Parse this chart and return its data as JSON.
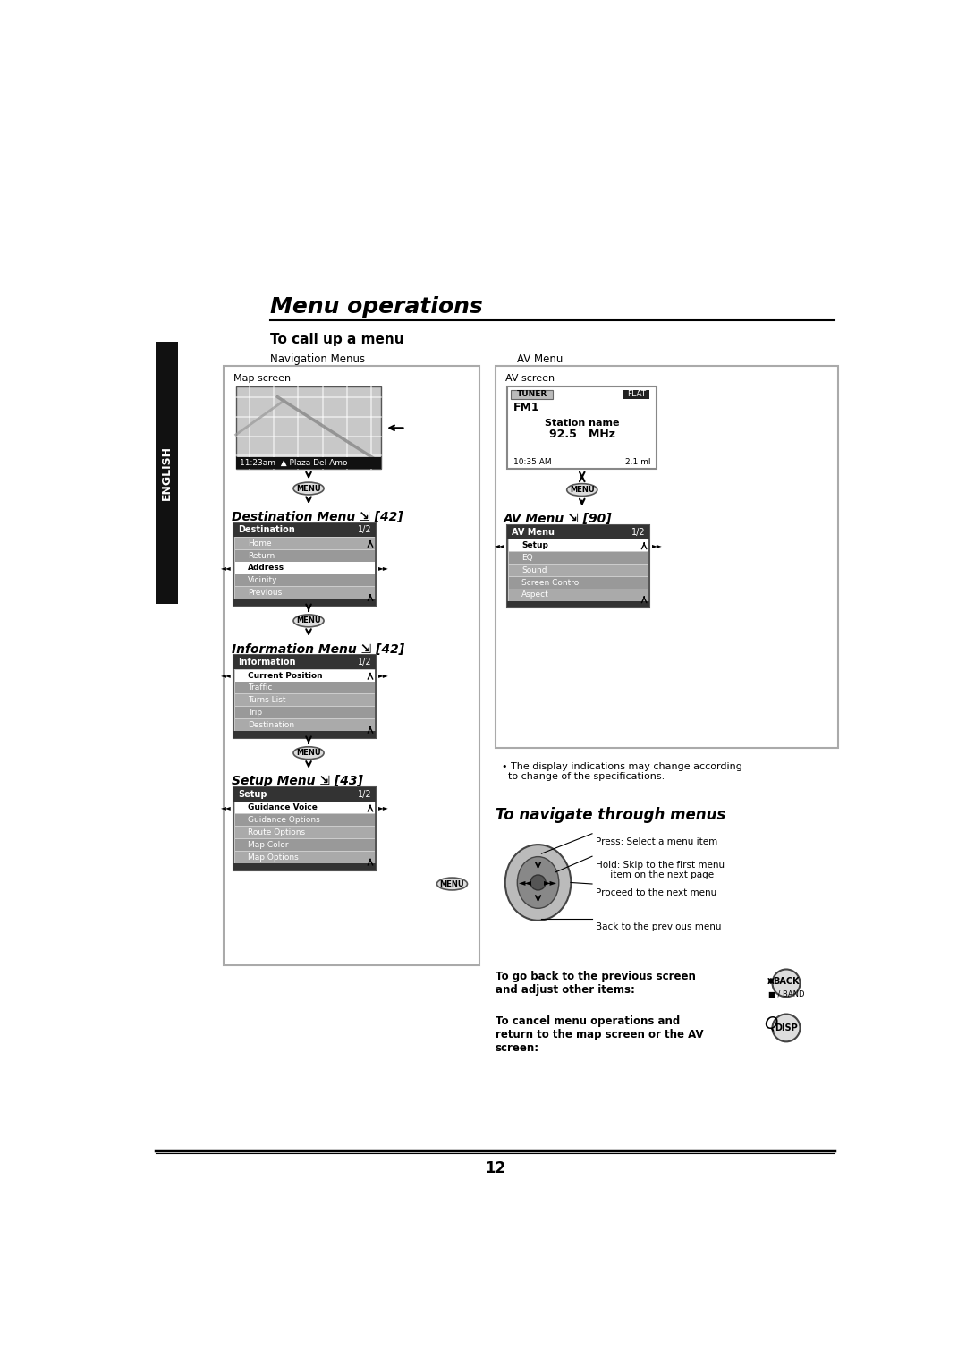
{
  "bg_color": "#ffffff",
  "title": "Menu operations",
  "section1_title": "To call up a menu",
  "nav_menus_label": "Navigation Menus",
  "av_menu_label": "AV Menu",
  "map_screen_label": "Map screen",
  "av_screen_label": "AV screen",
  "dest_menu_label": "Destination Menu",
  "dest_menu_ref": "[42]",
  "dest_menu_items": [
    "Home",
    "Return",
    "Address",
    "Vicinity",
    "Previous"
  ],
  "dest_menu_header": "Destination",
  "dest_selected": "Address",
  "info_menu_label": "Information Menu",
  "info_menu_ref": "[42]",
  "info_menu_header": "Information",
  "info_menu_items": [
    "Current Position",
    "Traffic",
    "Turns List",
    "Trip",
    "Destination"
  ],
  "info_selected": "Current Position",
  "setup_menu_label": "Setup Menu",
  "setup_menu_ref": "[43]",
  "setup_menu_header": "Setup",
  "setup_menu_items": [
    "Guidance Voice",
    "Guidance Options",
    "Route Options",
    "Map Color",
    "Map Options"
  ],
  "setup_selected": "Guidance Voice",
  "av_menu_header": "AV Menu",
  "av_menu_items": [
    "Setup",
    "EQ",
    "Sound",
    "Screen Control",
    "Aspect"
  ],
  "av_selected": "Setup",
  "tuner_text": "TUNER",
  "flat_text": "FLAT",
  "fm1_text": "FM1",
  "station_name": "Station name",
  "freq_text": "92.5   MHz",
  "time_text": "10:35 AM",
  "dist_text": "2.1 ml",
  "map_time": "11:23am",
  "map_place": "Plaza Del Amo",
  "navigate_title": "To navigate through menus",
  "back_label": "To go back to the previous screen\nand adjust other items:",
  "cancel_label": "To cancel menu operations and\nreturn to the map screen or the AV\nscreen:",
  "page_num": "12",
  "english_label": "ENGLISH"
}
